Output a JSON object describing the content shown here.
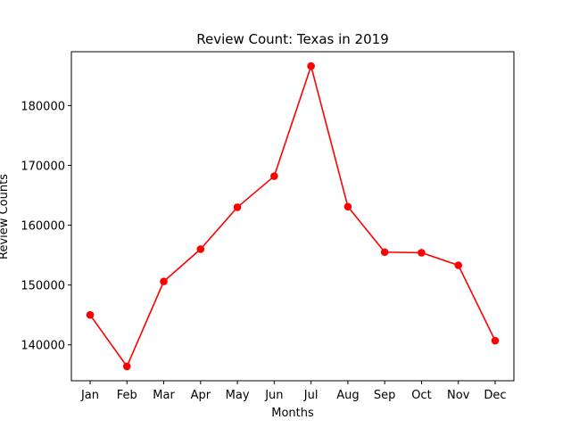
{
  "chart_data": {
    "type": "line",
    "title": "Review Count: Texas in 2019",
    "xlabel": "Months",
    "ylabel": "Review Counts",
    "categories": [
      "Jan",
      "Feb",
      "Mar",
      "Apr",
      "May",
      "Jun",
      "Jul",
      "Aug",
      "Sep",
      "Oct",
      "Nov",
      "Dec"
    ],
    "series": [
      {
        "values": [
          145000,
          136400,
          150600,
          156000,
          163000,
          168200,
          186600,
          163100,
          155500,
          155400,
          153300,
          140700
        ],
        "color": "#ff0000",
        "marker": "circle"
      }
    ],
    "ylim": [
      134000,
      189000
    ],
    "yticks": [
      140000,
      150000,
      160000,
      170000,
      180000
    ],
    "ytick_labels": [
      "140000",
      "150000",
      "160000",
      "170000",
      "180000"
    ],
    "grid": false,
    "legend": "none"
  }
}
